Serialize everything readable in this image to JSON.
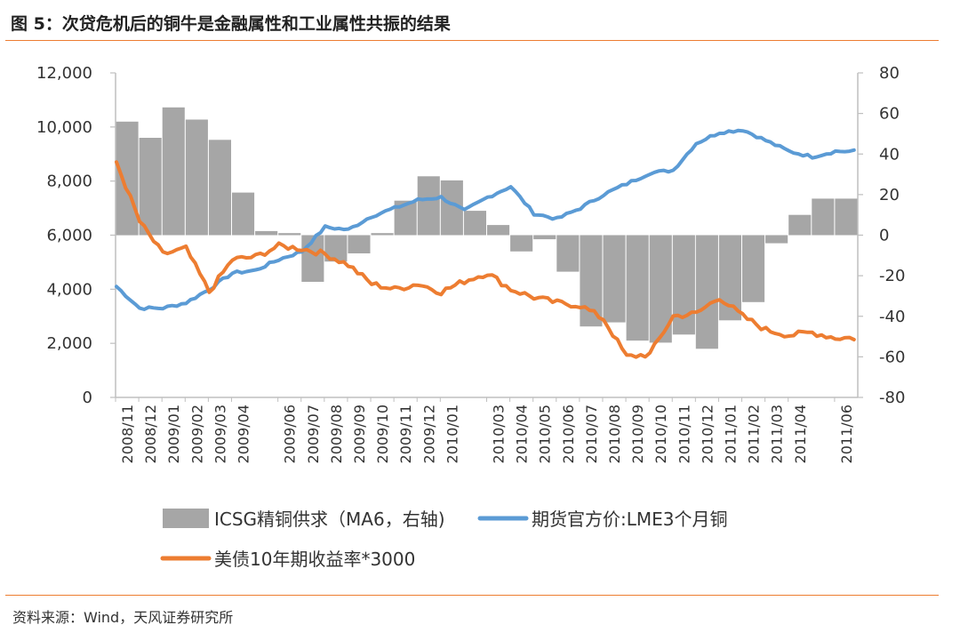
{
  "figure": {
    "title": "图 5：次贷危机后的铜牛是金融属性和工业属性共振的结果",
    "source": "资料来源：Wind，天风证券研究所"
  },
  "colors": {
    "bars": "#A6A6A6",
    "copper": "#5B9BD5",
    "yield": "#ED7D31",
    "accent_rule": "#ED7D31",
    "axis": "#BFBFBF"
  },
  "chart_data": {
    "type": "line",
    "title": "",
    "x": [
      "2008/11",
      "2008/12",
      "2009/01",
      "2009/02",
      "2009/03",
      "2009/04",
      "2009/06",
      "2009/07",
      "2009/08",
      "2009/09",
      "2009/10",
      "2009/11",
      "2009/12",
      "2010/01",
      "2010/03",
      "2010/04",
      "2010/05",
      "2010/06",
      "2010/07",
      "2010/08",
      "2010/09",
      "2010/10",
      "2010/11",
      "2010/12",
      "2011/01",
      "2011/02",
      "2011/03",
      "2011/04",
      "2011/06"
    ],
    "y_left": {
      "ticks": [
        "0",
        "2,000",
        "4,000",
        "6,000",
        "8,000",
        "10,000",
        "12,000"
      ],
      "range": [
        0,
        12000
      ]
    },
    "y_right": {
      "ticks": [
        "-80",
        "-60",
        "-40",
        "-20",
        "0",
        "20",
        "40",
        "60",
        "80"
      ],
      "range": [
        -80,
        80
      ]
    },
    "legend": "bottom",
    "series": [
      {
        "name": "ICSG精铜供求（MA6，右轴)",
        "type": "bar",
        "axis": "right",
        "color": "#A6A6A6",
        "points": [
          [
            "2008/11",
            56
          ],
          [
            "2008/12",
            48
          ],
          [
            "2009/01",
            63
          ],
          [
            "2009/02",
            57
          ],
          [
            "2009/03",
            47
          ],
          [
            "2009/04",
            21
          ],
          [
            "2009/05",
            2
          ],
          [
            "2009/06",
            1
          ],
          [
            "2009/07",
            -23
          ],
          [
            "2009/08",
            -13
          ],
          [
            "2009/09",
            -9
          ],
          [
            "2009/10",
            1
          ],
          [
            "2009/11",
            17
          ],
          [
            "2009/12",
            29
          ],
          [
            "2010/01",
            27
          ],
          [
            "2010/02",
            12
          ],
          [
            "2010/03",
            5
          ],
          [
            "2010/04",
            -8
          ],
          [
            "2010/05",
            -2
          ],
          [
            "2010/06",
            -18
          ],
          [
            "2010/07",
            -45
          ],
          [
            "2010/08",
            -43
          ],
          [
            "2010/09",
            -52
          ],
          [
            "2010/10",
            -53
          ],
          [
            "2010/11",
            -49
          ],
          [
            "2010/12",
            -56
          ],
          [
            "2011/01",
            -42
          ],
          [
            "2011/02",
            -33
          ],
          [
            "2011/03",
            -4
          ],
          [
            "2011/04",
            10
          ],
          [
            "2011/05",
            18
          ],
          [
            "2011/06",
            18
          ]
        ]
      },
      {
        "name": "期货官方价:LME3个月铜",
        "type": "line",
        "axis": "left",
        "color": "#5B9BD5",
        "points": [
          [
            "2008/11",
            4100
          ],
          [
            "2008/12",
            3300
          ],
          [
            "2009/01",
            3300
          ],
          [
            "2009/02",
            3500
          ],
          [
            "2009/03",
            4000
          ],
          [
            "2009/04",
            4600
          ],
          [
            "2009/05",
            4700
          ],
          [
            "2009/06",
            5100
          ],
          [
            "2009/07",
            5400
          ],
          [
            "2009/08",
            6300
          ],
          [
            "2009/09",
            6200
          ],
          [
            "2009/10",
            6700
          ],
          [
            "2009/11",
            7000
          ],
          [
            "2009/12",
            7300
          ],
          [
            "2010/01",
            7400
          ],
          [
            "2010/02",
            6900
          ],
          [
            "2010/03",
            7400
          ],
          [
            "2010/04",
            7800
          ],
          [
            "2010/05",
            6800
          ],
          [
            "2010/06",
            6600
          ],
          [
            "2010/07",
            7000
          ],
          [
            "2010/08",
            7500
          ],
          [
            "2010/09",
            7900
          ],
          [
            "2010/10",
            8300
          ],
          [
            "2010/11",
            8400
          ],
          [
            "2010/12",
            9400
          ],
          [
            "2011/01",
            9800
          ],
          [
            "2011/02",
            9900
          ],
          [
            "2011/03",
            9500
          ],
          [
            "2011/04",
            9100
          ],
          [
            "2011/05",
            8900
          ],
          [
            "2011/06",
            9100
          ]
        ]
      },
      {
        "name": "美债10年期收益率*3000",
        "type": "line",
        "axis": "left",
        "color": "#ED7D31",
        "points": [
          [
            "2008/11",
            8700
          ],
          [
            "2008/12",
            6500
          ],
          [
            "2009/01",
            5300
          ],
          [
            "2009/02",
            5500
          ],
          [
            "2009/03",
            3900
          ],
          [
            "2009/04",
            5100
          ],
          [
            "2009/05",
            5200
          ],
          [
            "2009/06",
            5600
          ],
          [
            "2009/07",
            5500
          ],
          [
            "2009/08",
            5300
          ],
          [
            "2009/09",
            4900
          ],
          [
            "2009/10",
            4200
          ],
          [
            "2009/11",
            4000
          ],
          [
            "2009/12",
            4200
          ],
          [
            "2010/01",
            3900
          ],
          [
            "2010/02",
            4300
          ],
          [
            "2010/03",
            4600
          ],
          [
            "2010/04",
            4000
          ],
          [
            "2010/05",
            3700
          ],
          [
            "2010/06",
            3500
          ],
          [
            "2010/07",
            3400
          ],
          [
            "2010/08",
            2900
          ],
          [
            "2010/09",
            1500
          ],
          [
            "2010/10",
            1600
          ],
          [
            "2010/11",
            3000
          ],
          [
            "2010/12",
            3100
          ],
          [
            "2011/01",
            3700
          ],
          [
            "2011/02",
            3000
          ],
          [
            "2011/03",
            2500
          ],
          [
            "2011/04",
            2300
          ],
          [
            "2011/05",
            2400
          ],
          [
            "2011/06",
            2200
          ]
        ]
      }
    ]
  }
}
